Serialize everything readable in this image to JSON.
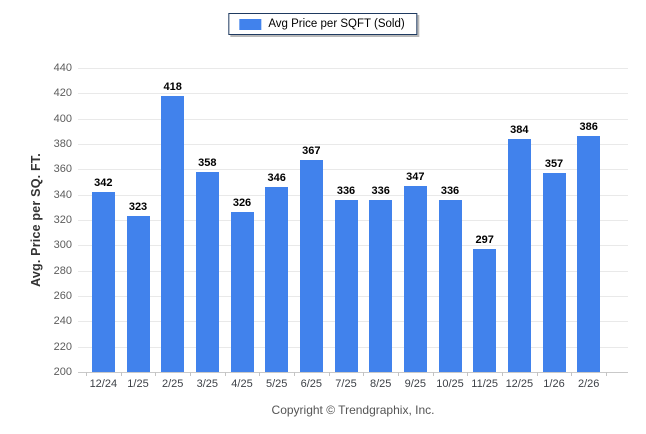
{
  "legend": {
    "label": "Avg Price per SQFT (Sold)",
    "swatch_color": "#4182ec"
  },
  "footer": {
    "copyright": "Copyright © Trendgraphix, Inc."
  },
  "chart_data": {
    "type": "bar",
    "title": "Avg Price per SQFT (Sold)",
    "categories": [
      "12/24",
      "1/25",
      "2/25",
      "3/25",
      "4/25",
      "5/25",
      "6/25",
      "7/25",
      "8/25",
      "9/25",
      "10/25",
      "11/25",
      "12/25",
      "1/26",
      "2/26"
    ],
    "values": [
      342,
      323,
      418,
      358,
      326,
      346,
      367,
      336,
      336,
      347,
      336,
      297,
      384,
      357,
      386
    ],
    "xlabel": "",
    "ylabel": "Avg. Price per SQ. FT.",
    "ylim": [
      200,
      440
    ],
    "y_tick_step": 20,
    "y_ticks": [
      200,
      220,
      240,
      260,
      280,
      300,
      320,
      340,
      360,
      380,
      400,
      420,
      440
    ],
    "grid": true,
    "legend_position": "top-center",
    "bar_color": "#4182ec",
    "value_labels": true
  }
}
